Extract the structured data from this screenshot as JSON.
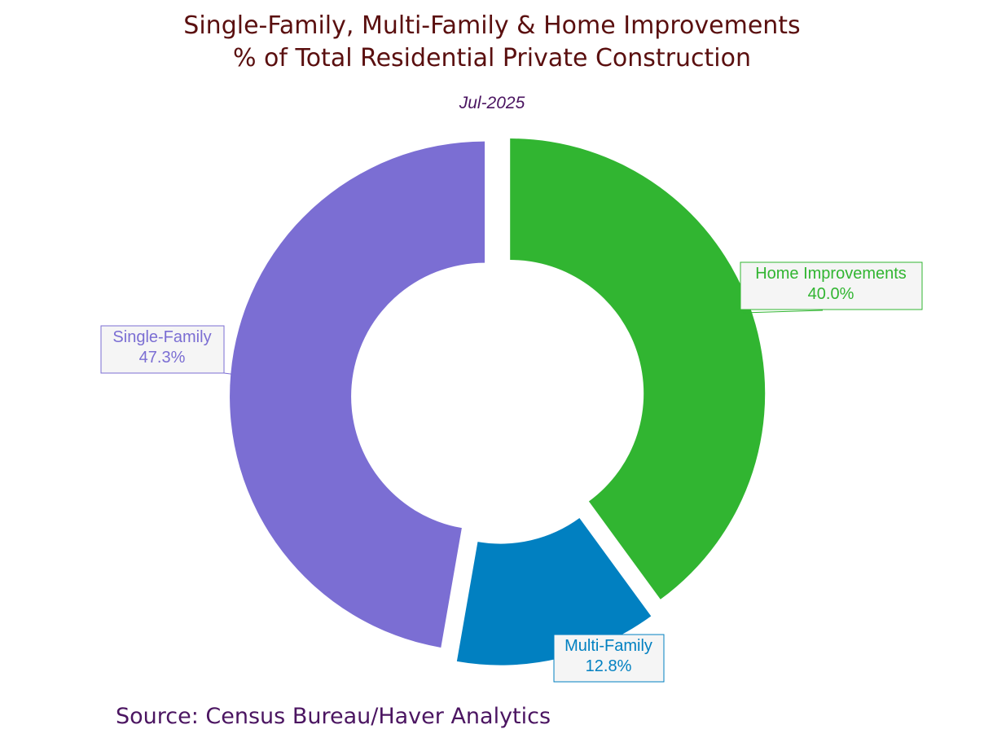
{
  "chart_data": {
    "type": "pie",
    "title": "Single-Family, Multi-Family & Home Improvements",
    "title_line2": "% of Total Residential Private Construction",
    "subtitle": "Jul-2025",
    "source": "Source: Census Bureau/Haver Analytics",
    "donut": true,
    "slices": [
      {
        "name": "Home Improvements",
        "value": 40.0,
        "label": "40.0%",
        "color": "#31b531"
      },
      {
        "name": "Multi-Family",
        "value": 12.8,
        "label": "12.8%",
        "color": "#0180c1"
      },
      {
        "name": "Single-Family",
        "value": 47.3,
        "label": "47.3%",
        "color": "#7b6ed3"
      }
    ]
  }
}
